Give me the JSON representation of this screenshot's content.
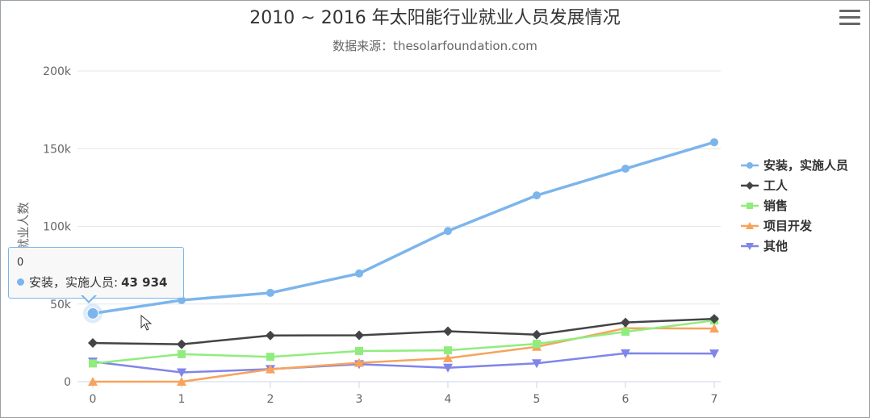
{
  "chart_data": {
    "type": "line",
    "title": "2010 ~ 2016 年太阳能行业就业人员发展情况",
    "subtitle": "数据来源：thesolarfoundation.com",
    "ylabel": "就业人数",
    "xlabel": "",
    "x": [
      0,
      1,
      2,
      3,
      4,
      5,
      6,
      7
    ],
    "ylim": [
      0,
      200000
    ],
    "y_ticks": [
      "0",
      "50k",
      "100k",
      "150k",
      "200k"
    ],
    "y_tick_values": [
      0,
      50000,
      100000,
      150000,
      200000
    ],
    "grid": true,
    "legend_position": "right",
    "series": [
      {
        "name": "安装，实施人员",
        "color": "#7cb5ec",
        "marker": "circle",
        "values": [
          43934,
          52503,
          57177,
          69658,
          97031,
          119931,
          137133,
          154175
        ]
      },
      {
        "name": "工人",
        "color": "#434348",
        "marker": "diamond",
        "values": [
          24916,
          24064,
          29742,
          29851,
          32490,
          30282,
          38121,
          40434
        ]
      },
      {
        "name": "销售",
        "color": "#90ed7d",
        "marker": "square",
        "values": [
          11744,
          17722,
          16005,
          19771,
          20185,
          24377,
          32147,
          39387
        ]
      },
      {
        "name": "项目开发",
        "color": "#f7a35c",
        "marker": "triangle",
        "values": [
          0,
          0,
          7988,
          12169,
          15112,
          22452,
          34400,
          34227
        ]
      },
      {
        "name": "其他",
        "color": "#8085e9",
        "marker": "triangle-down",
        "values": [
          12908,
          5948,
          8105,
          11248,
          8989,
          11816,
          18274,
          18111
        ]
      }
    ]
  },
  "tooltip": {
    "header": "0",
    "series_name": "安装，实施人员",
    "value": "43 934",
    "separator": ":"
  },
  "menu": {
    "icon": "hamburger-menu-icon"
  }
}
